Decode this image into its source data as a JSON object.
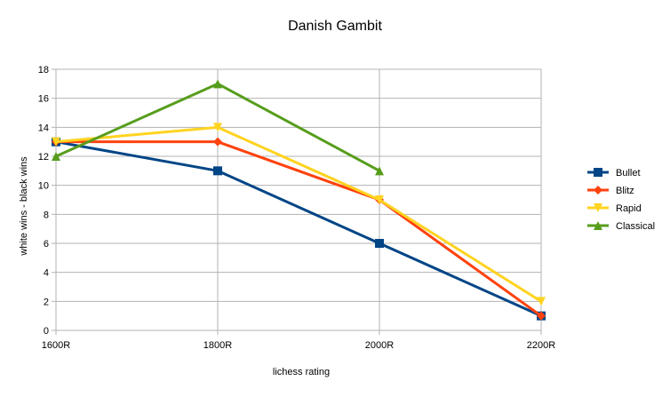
{
  "chart_data": {
    "type": "line",
    "title": "Danish Gambit",
    "xlabel": "lichess rating",
    "ylabel": "white wins - black wins",
    "categories": [
      "1600R",
      "1800R",
      "2000R",
      "2200R"
    ],
    "ylim": [
      0,
      18
    ],
    "yticks": [
      0,
      2,
      4,
      6,
      8,
      10,
      12,
      14,
      16,
      18
    ],
    "grid": true,
    "legend_position": "right",
    "series": [
      {
        "name": "Bullet",
        "color": "#004586",
        "marker": "square",
        "values": [
          13,
          11,
          6,
          1
        ]
      },
      {
        "name": "Blitz",
        "color": "#ff420e",
        "marker": "diamond",
        "values": [
          13,
          13,
          9,
          1
        ]
      },
      {
        "name": "Rapid",
        "color": "#ffd320",
        "marker": "triangle-down",
        "values": [
          13,
          14,
          9,
          2
        ]
      },
      {
        "name": "Classical",
        "color": "#579d1c",
        "marker": "triangle-up",
        "values": [
          12,
          17,
          11,
          null
        ]
      }
    ]
  }
}
